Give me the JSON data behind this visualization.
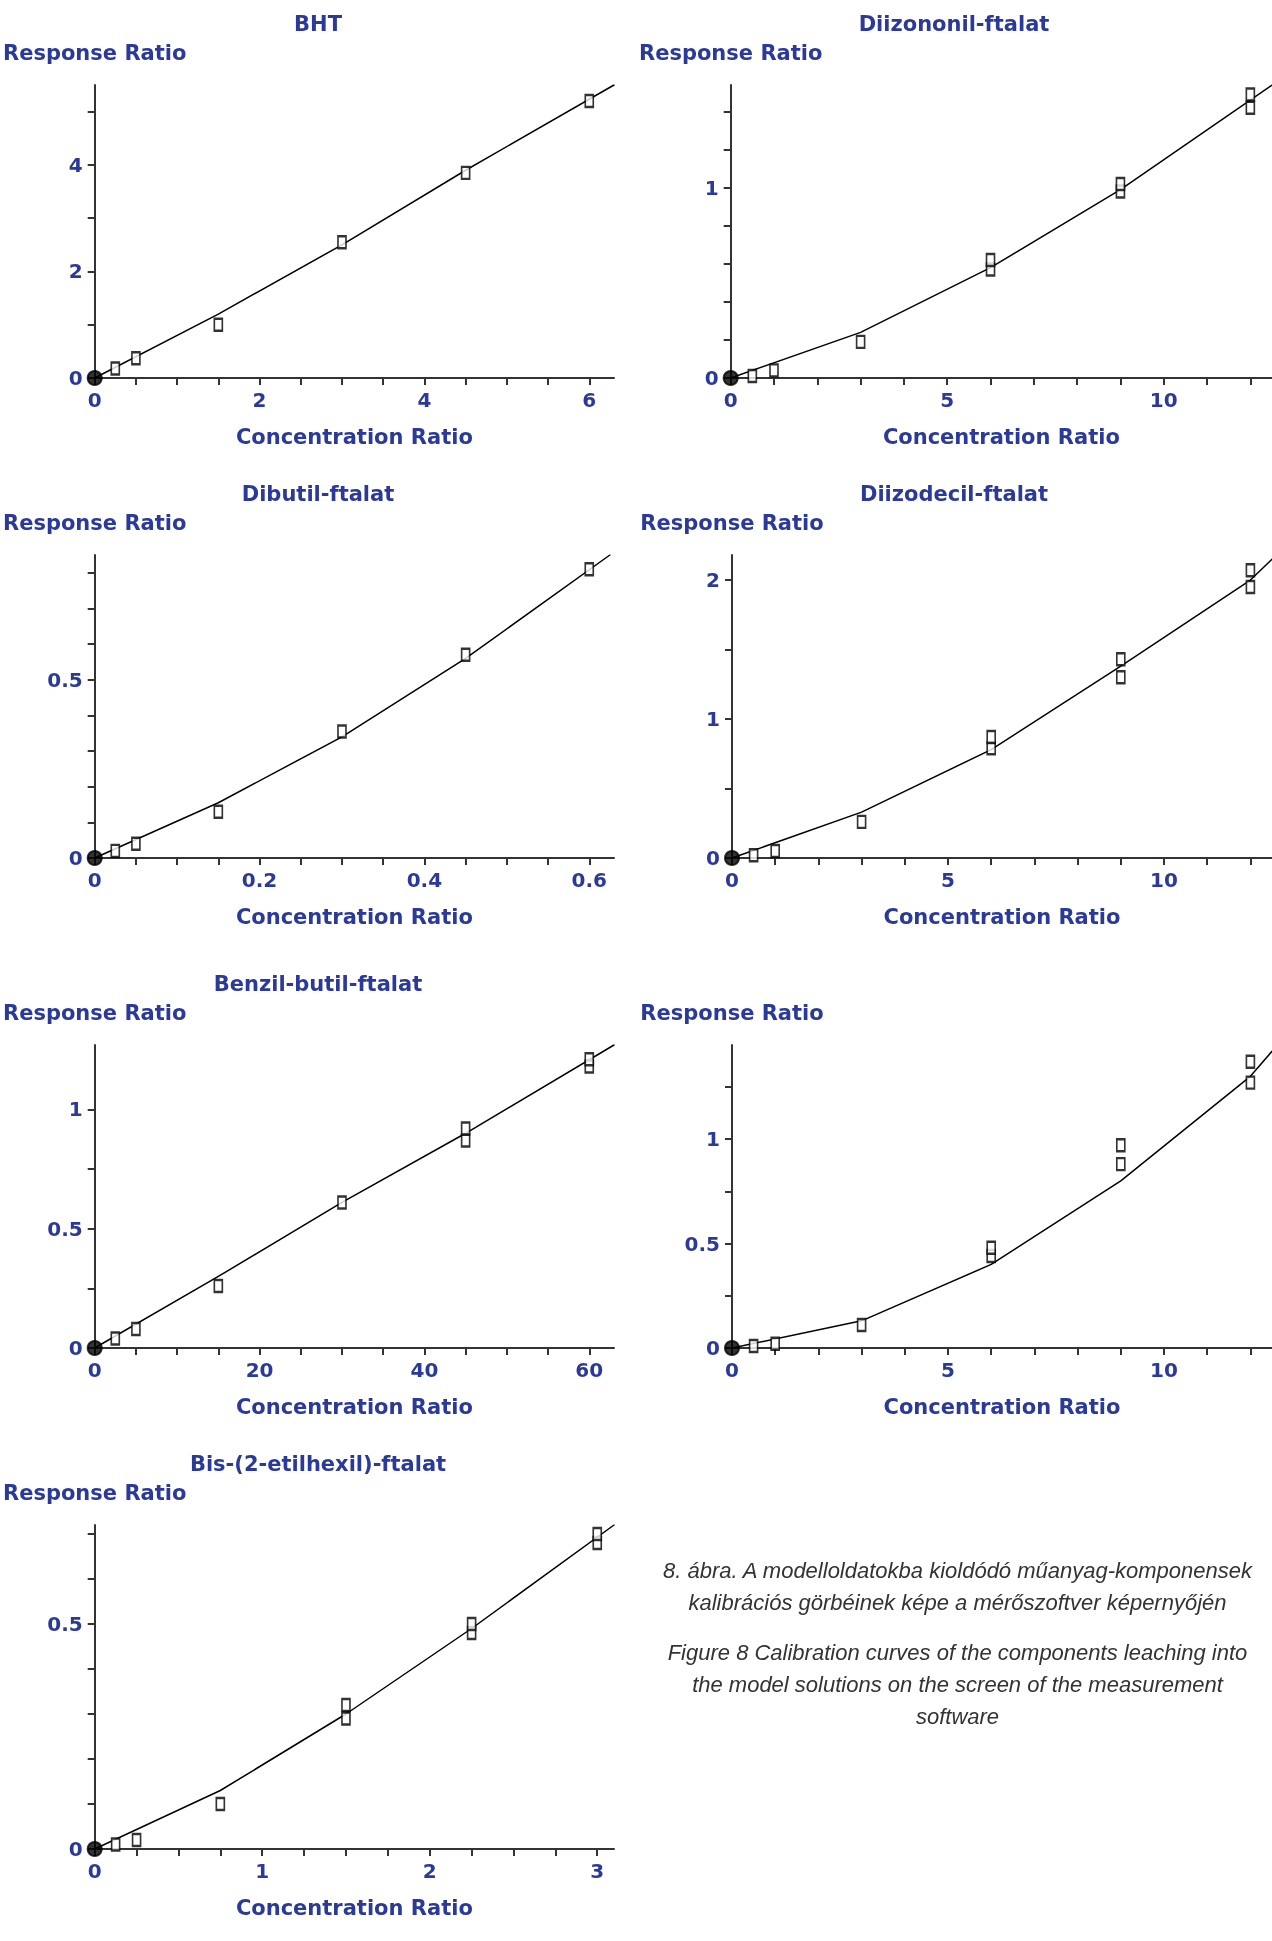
{
  "chart_data": [
    {
      "type": "scatter",
      "title": "BHT",
      "xlabel": "Concentration Ratio",
      "ylabel": "Response Ratio",
      "xlim": [
        0,
        6.3
      ],
      "ylim": [
        0,
        5.5
      ],
      "grid": false,
      "xticks": [
        0,
        {
          "value": 0.5,
          "label": null
        },
        {
          "value": 1,
          "label": null
        },
        {
          "value": 1.5,
          "label": null
        },
        2,
        {
          "value": 2.5,
          "label": null
        },
        {
          "value": 3,
          "label": null
        },
        {
          "value": 3.5,
          "label": null
        },
        4,
        {
          "value": 4.5,
          "label": null
        },
        {
          "value": 5,
          "label": null
        },
        {
          "value": 5.5,
          "label": null
        },
        6
      ],
      "yticks": [
        0,
        {
          "value": 1,
          "label": null
        },
        2,
        {
          "value": 3,
          "label": null
        },
        4,
        {
          "value": 5,
          "label": null
        }
      ],
      "series": [
        {
          "type": "scatter",
          "marker": "square",
          "color": "#000000",
          "x": [
            0.25,
            0.5,
            1.5,
            3,
            4.5,
            6
          ],
          "values": [
            0.18,
            0.37,
            1.0,
            2.55,
            3.85,
            5.2
          ]
        },
        {
          "type": "line",
          "marker": "none",
          "color": "#000000",
          "x": [
            0,
            1.5,
            3,
            4.5,
            6.3
          ],
          "values": [
            0,
            1.2,
            2.5,
            3.9,
            5.5
          ]
        },
        {
          "type": "scatter",
          "marker": "circle",
          "color": "#000000",
          "x": [
            0
          ],
          "values": [
            0
          ]
        }
      ]
    },
    {
      "type": "scatter",
      "title": "Diizononil-ftalat",
      "xlabel": "Concentration Ratio",
      "ylabel": "Response Ratio",
      "xlim": [
        0,
        12.5
      ],
      "ylim": [
        0,
        1.54
      ],
      "grid": false,
      "xticks": [
        0,
        {
          "value": 1,
          "label": null
        },
        {
          "value": 2,
          "label": null
        },
        {
          "value": 3,
          "label": null
        },
        {
          "value": 4,
          "label": null
        },
        5,
        {
          "value": 6,
          "label": null
        },
        {
          "value": 7,
          "label": null
        },
        {
          "value": 8,
          "label": null
        },
        {
          "value": 9,
          "label": null
        },
        10,
        {
          "value": 11,
          "label": null
        },
        {
          "value": 12,
          "label": null
        }
      ],
      "yticks": [
        0,
        {
          "value": 0.2,
          "label": null
        },
        {
          "value": 0.4,
          "label": null
        },
        {
          "value": 0.6,
          "label": null
        },
        {
          "value": 0.8,
          "label": null
        },
        1,
        {
          "value": 1.2,
          "label": null
        },
        {
          "value": 1.4,
          "label": null
        }
      ],
      "series": [
        {
          "type": "scatter",
          "marker": "square",
          "color": "#000000",
          "x": [
            0.5,
            1,
            3,
            6,
            6,
            9,
            9,
            12,
            12
          ],
          "values": [
            0.01,
            0.04,
            0.19,
            0.57,
            0.62,
            0.98,
            1.02,
            1.42,
            1.49
          ]
        },
        {
          "type": "line",
          "marker": "none",
          "color": "#000000",
          "x": [
            0,
            3,
            6,
            9,
            12.5
          ],
          "values": [
            0,
            0.24,
            0.58,
            0.99,
            1.54
          ]
        },
        {
          "type": "scatter",
          "marker": "circle",
          "color": "#000000",
          "x": [
            0
          ],
          "values": [
            0
          ]
        }
      ]
    },
    {
      "type": "scatter",
      "title": "Dibutil-ftalat",
      "xlabel": "Concentration Ratio",
      "ylabel": "Response Ratio",
      "xlim": [
        0,
        0.63
      ],
      "ylim": [
        0,
        0.85
      ],
      "grid": false,
      "xticks": [
        0,
        {
          "value": 0.05,
          "label": null
        },
        {
          "value": 0.1,
          "label": null
        },
        {
          "value": 0.15,
          "label": null
        },
        0.2,
        {
          "value": 0.25,
          "label": null
        },
        {
          "value": 0.3,
          "label": null
        },
        {
          "value": 0.35,
          "label": null
        },
        0.4,
        {
          "value": 0.45,
          "label": null
        },
        {
          "value": 0.5,
          "label": null
        },
        {
          "value": 0.55,
          "label": null
        },
        0.6
      ],
      "yticks": [
        0,
        {
          "value": 0.1,
          "label": null
        },
        {
          "value": 0.2,
          "label": null
        },
        {
          "value": 0.3,
          "label": null
        },
        {
          "value": 0.4,
          "label": null
        },
        0.5,
        {
          "value": 0.6,
          "label": null
        },
        {
          "value": 0.7,
          "label": null
        },
        {
          "value": 0.8,
          "label": null
        }
      ],
      "series": [
        {
          "type": "scatter",
          "marker": "square",
          "color": "#000000",
          "x": [
            0.025,
            0.05,
            0.15,
            0.3,
            0.45,
            0.6
          ],
          "values": [
            0.02,
            0.04,
            0.13,
            0.355,
            0.57,
            0.81
          ]
        },
        {
          "type": "line",
          "marker": "none",
          "color": "#000000",
          "x": [
            0,
            0.15,
            0.3,
            0.45,
            0.625
          ],
          "values": [
            0,
            0.155,
            0.34,
            0.56,
            0.85
          ]
        },
        {
          "type": "scatter",
          "marker": "circle",
          "color": "#000000",
          "x": [
            0
          ],
          "values": [
            0
          ]
        }
      ]
    },
    {
      "type": "scatter",
      "title": "Diizodecil-ftalat",
      "xlabel": "Concentration Ratio",
      "ylabel": "Response Ratio",
      "xlim": [
        0,
        12.5
      ],
      "ylim": [
        0,
        2.18
      ],
      "grid": false,
      "xticks": [
        0,
        {
          "value": 1,
          "label": null
        },
        {
          "value": 2,
          "label": null
        },
        {
          "value": 3,
          "label": null
        },
        {
          "value": 4,
          "label": null
        },
        5,
        {
          "value": 6,
          "label": null
        },
        {
          "value": 7,
          "label": null
        },
        {
          "value": 8,
          "label": null
        },
        {
          "value": 9,
          "label": null
        },
        10,
        {
          "value": 11,
          "label": null
        },
        {
          "value": 12,
          "label": null
        }
      ],
      "yticks": [
        0,
        {
          "value": 0.5,
          "label": null
        },
        1,
        {
          "value": 1.5,
          "label": null
        },
        2
      ],
      "series": [
        {
          "type": "scatter",
          "marker": "square",
          "color": "#000000",
          "x": [
            0.5,
            1,
            3,
            6,
            6,
            9,
            9,
            12,
            12
          ],
          "values": [
            0.02,
            0.05,
            0.26,
            0.79,
            0.87,
            1.3,
            1.43,
            1.95,
            2.07
          ]
        },
        {
          "type": "line",
          "marker": "none",
          "color": "#000000",
          "x": [
            0,
            3,
            6,
            9,
            12,
            12.5
          ],
          "values": [
            0,
            0.33,
            0.78,
            1.38,
            2.0,
            2.15
          ]
        },
        {
          "type": "scatter",
          "marker": "circle",
          "color": "#000000",
          "x": [
            0
          ],
          "values": [
            0
          ]
        }
      ]
    },
    {
      "type": "scatter",
      "title": "Benzil-butil-ftalat",
      "xlabel": "Concentration Ratio",
      "ylabel": "Response Ratio",
      "xlim": [
        0,
        63
      ],
      "ylim": [
        0,
        1.27
      ],
      "grid": false,
      "xticks": [
        0,
        {
          "value": 5,
          "label": null
        },
        {
          "value": 10,
          "label": null
        },
        {
          "value": 15,
          "label": null
        },
        20,
        {
          "value": 25,
          "label": null
        },
        {
          "value": 30,
          "label": null
        },
        {
          "value": 35,
          "label": null
        },
        40,
        {
          "value": 45,
          "label": null
        },
        {
          "value": 50,
          "label": null
        },
        {
          "value": 55,
          "label": null
        },
        60
      ],
      "yticks": [
        0,
        {
          "value": 0.25,
          "label": null
        },
        0.5,
        {
          "value": 0.75,
          "label": null
        },
        1
      ],
      "series": [
        {
          "type": "scatter",
          "marker": "square",
          "color": "#000000",
          "x": [
            2.5,
            5,
            15,
            30,
            45,
            45,
            60,
            60
          ],
          "values": [
            0.04,
            0.08,
            0.26,
            0.61,
            0.87,
            0.92,
            1.18,
            1.21
          ]
        },
        {
          "type": "line",
          "marker": "none",
          "color": "#000000",
          "x": [
            0,
            15,
            30,
            45,
            63
          ],
          "values": [
            0,
            0.3,
            0.61,
            0.9,
            1.27
          ]
        },
        {
          "type": "scatter",
          "marker": "circle",
          "color": "#000000",
          "x": [
            0
          ],
          "values": [
            0
          ]
        }
      ]
    },
    {
      "type": "scatter",
      "xlabel": "Concentration Ratio",
      "ylabel": "Response Ratio",
      "xlim": [
        0,
        12.5
      ],
      "ylim": [
        0,
        1.45
      ],
      "grid": false,
      "xticks": [
        0,
        {
          "value": 1,
          "label": null
        },
        {
          "value": 2,
          "label": null
        },
        {
          "value": 3,
          "label": null
        },
        {
          "value": 4,
          "label": null
        },
        5,
        {
          "value": 6,
          "label": null
        },
        {
          "value": 7,
          "label": null
        },
        {
          "value": 8,
          "label": null
        },
        {
          "value": 9,
          "label": null
        },
        10,
        {
          "value": 11,
          "label": null
        },
        {
          "value": 12,
          "label": null
        }
      ],
      "yticks": [
        0,
        {
          "value": 0.25,
          "label": null
        },
        0.5,
        {
          "value": 0.75,
          "label": null
        },
        1,
        {
          "value": 1.25,
          "label": null
        }
      ],
      "series": [
        {
          "type": "scatter",
          "marker": "square",
          "color": "#000000",
          "x": [
            0.5,
            1,
            3,
            6,
            6,
            9,
            9,
            12,
            12
          ],
          "values": [
            0.01,
            0.02,
            0.11,
            0.44,
            0.48,
            0.88,
            0.97,
            1.27,
            1.37
          ]
        },
        {
          "type": "line",
          "marker": "none",
          "color": "#000000",
          "x": [
            0,
            3,
            6,
            9,
            12,
            12.5
          ],
          "values": [
            0,
            0.13,
            0.4,
            0.8,
            1.3,
            1.42
          ]
        },
        {
          "type": "scatter",
          "marker": "circle",
          "color": "#000000",
          "x": [
            0
          ],
          "values": [
            0
          ]
        }
      ]
    },
    {
      "type": "scatter",
      "title": "Bis-(2-etilhexil)-ftalat",
      "xlabel": "Concentration Ratio",
      "ylabel": "Response Ratio",
      "xlim": [
        0,
        3.1
      ],
      "ylim": [
        0,
        0.72
      ],
      "grid": false,
      "xticks": [
        0,
        {
          "value": 0.25,
          "label": null
        },
        {
          "value": 0.5,
          "label": null
        },
        {
          "value": 0.75,
          "label": null
        },
        1,
        {
          "value": 1.25,
          "label": null
        },
        {
          "value": 1.5,
          "label": null
        },
        {
          "value": 1.75,
          "label": null
        },
        2,
        {
          "value": 2.25,
          "label": null
        },
        {
          "value": 2.5,
          "label": null
        },
        {
          "value": 2.75,
          "label": null
        },
        3
      ],
      "yticks": [
        0,
        {
          "value": 0.1,
          "label": null
        },
        {
          "value": 0.2,
          "label": null
        },
        {
          "value": 0.3,
          "label": null
        },
        {
          "value": 0.4,
          "label": null
        },
        0.5,
        {
          "value": 0.6,
          "label": null
        },
        {
          "value": 0.7,
          "label": null
        }
      ],
      "series": [
        {
          "type": "scatter",
          "marker": "square",
          "color": "#000000",
          "x": [
            0.125,
            0.25,
            0.75,
            1.5,
            1.5,
            2.25,
            2.25,
            3,
            3
          ],
          "values": [
            0.01,
            0.02,
            0.1,
            0.29,
            0.32,
            0.48,
            0.5,
            0.68,
            0.7
          ]
        },
        {
          "type": "line",
          "marker": "none",
          "color": "#000000",
          "x": [
            0,
            0.75,
            1.5,
            2.25,
            3.1
          ],
          "values": [
            0,
            0.13,
            0.3,
            0.49,
            0.72
          ]
        },
        {
          "type": "scatter",
          "marker": "circle",
          "color": "#000000",
          "x": [
            0
          ],
          "values": [
            0
          ]
        }
      ]
    },
    {
      "type": "other",
      "annotations": [
        "8. ábra. A modelloldatokba kioldódó műanyag-komponensek kalibrációs görbéinek képe a mérőszoftver képernyőjén",
        "Figure 8 Calibration curves of the components leaching into the model solutions on the screen of the measurement software"
      ]
    }
  ]
}
